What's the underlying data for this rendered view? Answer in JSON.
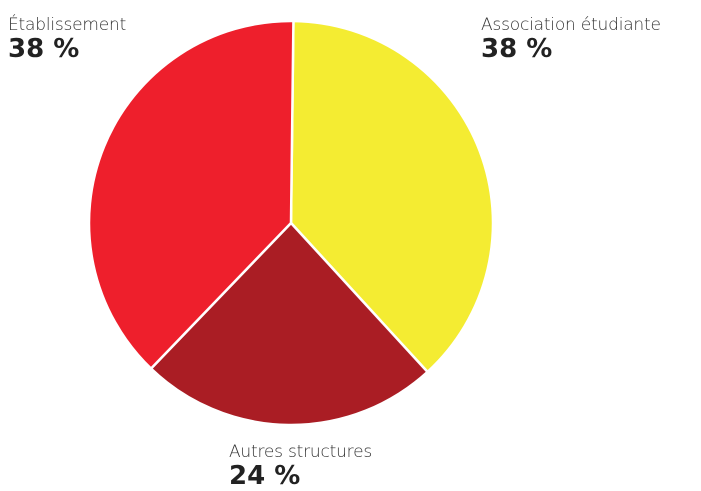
{
  "chart_data": {
    "type": "pie",
    "title": "",
    "slices": [
      {
        "label": "Association étudiante",
        "value": 38,
        "value_text": "38 %",
        "color": "#F4EC32"
      },
      {
        "label": "Autres structures",
        "value": 24,
        "value_text": "24 %",
        "color": "#AA1D24"
      },
      {
        "label": "Établissement",
        "value": 38,
        "value_text": "38 %",
        "color": "#EE1F2C"
      }
    ],
    "start": "12 o'clock",
    "direction": "clockwise",
    "slice_border_color": "#ffffff",
    "legend": "labels-outside"
  }
}
